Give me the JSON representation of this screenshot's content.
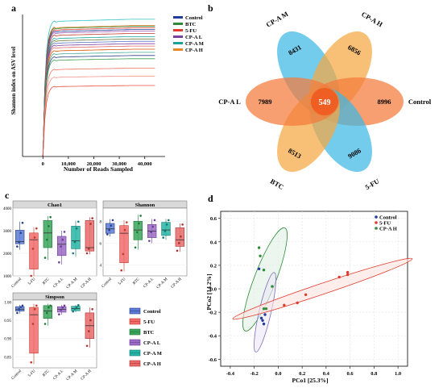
{
  "panels": {
    "a": {
      "label": "a",
      "chart_data": {
        "type": "line",
        "title": "",
        "xlabel": "Number of Reads Sampled",
        "ylabel": "Shannon index on ASV level",
        "xlim": [
          -8000,
          48000
        ],
        "ylim": [
          0,
          9
        ],
        "xticks": [
          0,
          10000,
          20000,
          30000,
          40000
        ],
        "xtick_labels": [
          "0",
          "10,000",
          "20,000",
          "30,000",
          "40,000"
        ],
        "legend_position": "top-right",
        "legend": [
          {
            "name": "Control",
            "color": "#1f3d99"
          },
          {
            "name": "BTC",
            "color": "#2e8b3a"
          },
          {
            "name": "5-FU",
            "color": "#e23b2e"
          },
          {
            "name": "CP-A L",
            "color": "#7b3fa0"
          },
          {
            "name": "CP-A M",
            "color": "#17a39a"
          },
          {
            "name": "CP-A H",
            "color": "#e8862a"
          }
        ],
        "curves": [
          {
            "group": "CP-A M",
            "color": "#33c2c8",
            "plateau": 8.7
          },
          {
            "group": "CP-A H",
            "color": "#e8862a",
            "plateau": 8.3
          },
          {
            "group": "BTC",
            "color": "#2e8b3a",
            "plateau": 8.25
          },
          {
            "group": "5-FU",
            "color": "#e23b2e",
            "plateau": 8.15
          },
          {
            "group": "Control",
            "color": "#1f3d99",
            "plateau": 8.05
          },
          {
            "group": "CP-A L",
            "color": "#9b59b6",
            "plateau": 7.95
          },
          {
            "group": "CP-A H",
            "color": "#c0392b",
            "plateau": 7.8
          },
          {
            "group": "CP-A M",
            "color": "#17a39a",
            "plateau": 7.6
          },
          {
            "group": "BTC",
            "color": "#6c7a3a",
            "plateau": 7.45
          },
          {
            "group": "Control",
            "color": "#5b6fc2",
            "plateau": 7.3
          },
          {
            "group": "CP-A L",
            "color": "#7b3fa0",
            "plateau": 7.15
          },
          {
            "group": "5-FU",
            "color": "#e06666",
            "plateau": 7.0
          },
          {
            "group": "CP-A H",
            "color": "#d35400",
            "plateau": 6.8
          },
          {
            "group": "CP-A M",
            "color": "#48a999",
            "plateau": 6.6
          },
          {
            "group": "Control",
            "color": "#2c3e80",
            "plateau": 6.4
          },
          {
            "group": "BTC",
            "color": "#3a9d4f",
            "plateau": 6.2
          },
          {
            "group": "5-FU",
            "color": "#ec7063",
            "plateau": 5.6
          },
          {
            "group": "5-FU",
            "color": "#f1948a",
            "plateau": 5.1
          },
          {
            "group": "5-FU",
            "color": "#e74c3c",
            "plateau": 4.5
          }
        ]
      }
    },
    "b": {
      "label": "b",
      "chart_data": {
        "type": "venn",
        "sets": [
          {
            "name": "CP-A M",
            "unique": 8431,
            "color": "#3eb8e5"
          },
          {
            "name": "CP-A H",
            "unique": 6856,
            "color": "#f5a742"
          },
          {
            "name": "Control",
            "unique": 8996,
            "color": "#f47a3a"
          },
          {
            "name": "5-FU",
            "unique": 9086,
            "color": "#3eb8e5"
          },
          {
            "name": "BTC",
            "unique": 8513,
            "color": "#f5a742"
          },
          {
            "name": "CP-A L",
            "unique": 7989,
            "color": "#f47a3a"
          }
        ],
        "shared_all": 549,
        "center_color": "#f05a1e"
      }
    },
    "c": {
      "label": "c",
      "chart_data": [
        {
          "type": "box",
          "title": "Chao1",
          "ylim": [
            1000,
            4000
          ],
          "yticks": [
            1000,
            2000,
            3000,
            4000
          ],
          "categories": [
            "Control",
            "5-FU",
            "BTC",
            "CP-A L",
            "CP-A M",
            "CP-A H"
          ],
          "boxes": [
            {
              "q1": 2420,
              "median": 2520,
              "q3": 3020,
              "lo": 2150,
              "hi": 3400,
              "points": [
                2300,
                2500,
                2900,
                3350
              ]
            },
            {
              "q1": 1300,
              "median": 2600,
              "q3": 2900,
              "lo": 1000,
              "hi": 3150,
              "points": [
                1000,
                2200,
                2700,
                3100
              ]
            },
            {
              "q1": 2250,
              "median": 2900,
              "q3": 3450,
              "lo": 1700,
              "hi": 3650,
              "points": [
                1800,
                2600,
                3200,
                3600
              ]
            },
            {
              "q1": 1900,
              "median": 2400,
              "q3": 2750,
              "lo": 1500,
              "hi": 3000,
              "points": [
                1600,
                2300,
                2600,
                2950
              ]
            },
            {
              "q1": 2200,
              "median": 2550,
              "q3": 3200,
              "lo": 1850,
              "hi": 3450,
              "points": [
                2000,
                2500,
                3100,
                3400
              ]
            },
            {
              "q1": 2100,
              "median": 2250,
              "q3": 3450,
              "lo": 1950,
              "hi": 3600,
              "points": [
                2000,
                2200,
                3300,
                3550
              ]
            }
          ]
        },
        {
          "type": "box",
          "title": "Shannon",
          "ylim": [
            3,
            9.2
          ],
          "yticks": [
            4,
            6,
            8
          ],
          "categories": [
            "Control",
            "5-FU",
            "BTC",
            "CP-A L",
            "CP-A M",
            "CP-A H"
          ],
          "boxes": [
            {
              "q1": 6.9,
              "median": 7.3,
              "q3": 7.8,
              "lo": 6.6,
              "hi": 8.2,
              "points": [
                6.8,
                7.2,
                7.6,
                8.1
              ]
            },
            {
              "q1": 4.2,
              "median": 6.9,
              "q3": 7.6,
              "lo": 3.4,
              "hi": 8.1,
              "points": [
                3.5,
                5.0,
                7.2,
                7.9
              ]
            },
            {
              "q1": 6.3,
              "median": 7.2,
              "q3": 8.0,
              "lo": 5.4,
              "hi": 8.6,
              "points": [
                5.6,
                7.0,
                7.8,
                8.5
              ]
            },
            {
              "q1": 6.5,
              "median": 7.1,
              "q3": 7.7,
              "lo": 6.0,
              "hi": 8.2,
              "points": [
                6.2,
                7.0,
                7.5,
                8.1
              ]
            },
            {
              "q1": 6.7,
              "median": 7.2,
              "q3": 7.9,
              "lo": 6.3,
              "hi": 8.2,
              "points": [
                6.5,
                7.1,
                7.7,
                8.1
              ]
            },
            {
              "q1": 5.7,
              "median": 6.3,
              "q3": 7.4,
              "lo": 5.2,
              "hi": 7.8,
              "points": [
                5.3,
                6.0,
                6.6,
                7.7
              ]
            }
          ]
        },
        {
          "type": "box",
          "title": "Simpson",
          "ylim": [
            0.82,
            1.005
          ],
          "yticks": [
            0.85,
            0.9,
            0.95,
            1.0
          ],
          "ytick_labels": [
            "0.85",
            "0.90",
            "0.95",
            "1.00"
          ],
          "categories": [
            "Control",
            "5-FU",
            "BTC",
            "CP-A L",
            "CP-A M",
            "CP-A H"
          ],
          "boxes": [
            {
              "q1": 0.975,
              "median": 0.98,
              "q3": 0.987,
              "lo": 0.968,
              "hi": 0.992,
              "points": [
                0.97,
                0.98,
                0.986,
                0.99
              ]
            },
            {
              "q1": 0.86,
              "median": 0.965,
              "q3": 0.985,
              "lo": 0.83,
              "hi": 0.995,
              "points": [
                0.835,
                0.94,
                0.98,
                0.99
              ]
            },
            {
              "q1": 0.955,
              "median": 0.975,
              "q3": 0.99,
              "lo": 0.935,
              "hi": 0.995,
              "points": [
                0.94,
                0.97,
                0.985,
                0.99
              ]
            },
            {
              "q1": 0.972,
              "median": 0.98,
              "q3": 0.987,
              "lo": 0.965,
              "hi": 0.992,
              "points": [
                0.966,
                0.978,
                0.985,
                0.99
              ]
            },
            {
              "q1": 0.976,
              "median": 0.982,
              "q3": 0.988,
              "lo": 0.972,
              "hi": 0.992,
              "points": [
                0.974,
                0.981,
                0.986,
                0.991
              ]
            },
            {
              "q1": 0.9,
              "median": 0.935,
              "q3": 0.97,
              "lo": 0.875,
              "hi": 0.985,
              "points": [
                0.88,
                0.92,
                0.95,
                0.98
              ]
            }
          ]
        }
      ],
      "legend": [
        {
          "name": "Control",
          "fill": "#5b7bd5",
          "edge": "#27408b"
        },
        {
          "name": "5-FU",
          "fill": "#f26b6b",
          "edge": "#c0392b"
        },
        {
          "name": "BTC",
          "fill": "#3aa55a",
          "edge": "#1e7a3a"
        },
        {
          "name": "CP-A L",
          "fill": "#9b6ac4",
          "edge": "#6a3d9a"
        },
        {
          "name": "CP-A M",
          "fill": "#26b5a6",
          "edge": "#137a70"
        },
        {
          "name": "CP-A H",
          "fill": "#e86a6a",
          "edge": "#b03030"
        }
      ]
    },
    "d": {
      "label": "d",
      "chart_data": {
        "type": "scatter",
        "title": "",
        "xlabel": "PCo1 [25.3%]",
        "ylabel": "PCo2 [14.2%]",
        "xlim": [
          -0.48,
          1.08
        ],
        "ylim": [
          -0.66,
          0.66
        ],
        "xticks": [
          -0.4,
          -0.2,
          0.0,
          0.2,
          0.4,
          0.6,
          0.8,
          1.0
        ],
        "xtick_labels": [
          "-0.4",
          "-0.2",
          "0.0",
          "0.2",
          "0.4",
          "0.6",
          "0.8",
          "1.0"
        ],
        "yticks": [
          -0.6,
          -0.4,
          -0.2,
          0.0,
          0.2,
          0.4,
          0.6
        ],
        "ytick_labels": [
          "-0.6",
          "-0.4",
          "-0.2",
          "0.0",
          "0.2",
          "0.4",
          "0.6"
        ],
        "grid": true,
        "legend_position": "top-right",
        "series": [
          {
            "name": "Control",
            "color": "#1f3d99",
            "x": [
              -0.16,
              -0.14,
              -0.13,
              -0.12,
              -0.11
            ],
            "y": [
              0.17,
              -0.25,
              -0.27,
              -0.3,
              -0.22
            ]
          },
          {
            "name": "5-FU",
            "color": "#e23b2e",
            "x": [
              0.05,
              0.16,
              0.23,
              0.51,
              0.58,
              0.58
            ],
            "y": [
              -0.14,
              -0.12,
              -0.05,
              0.1,
              0.12,
              0.14
            ]
          },
          {
            "name": "CP-A H",
            "color": "#2e8b3a",
            "x": [
              -0.16,
              -0.15,
              -0.12,
              -0.05,
              -0.12,
              -0.1
            ],
            "y": [
              0.35,
              0.28,
              0.16,
              0.02,
              -0.17,
              -0.17
            ]
          }
        ],
        "ellipses": [
          {
            "group": "CP-A H",
            "color": "#2e8b3a",
            "fill": "#dff0e3",
            "cx": -0.11,
            "cy": 0.08,
            "rx": 0.46,
            "ry": 0.09,
            "angle_deg": 69
          },
          {
            "group": "Control",
            "color": "#7b6fb8",
            "fill": "#ece8f7",
            "cx": -0.11,
            "cy": -0.2,
            "rx": 0.34,
            "ry": 0.05,
            "angle_deg": 77
          },
          {
            "group": "5-FU",
            "color": "#e23b2e",
            "fill": "#fbe3e0",
            "cx": 0.37,
            "cy": 0.0,
            "rx": 0.79,
            "ry": 0.045,
            "angle_deg": 18.5
          }
        ]
      }
    }
  }
}
